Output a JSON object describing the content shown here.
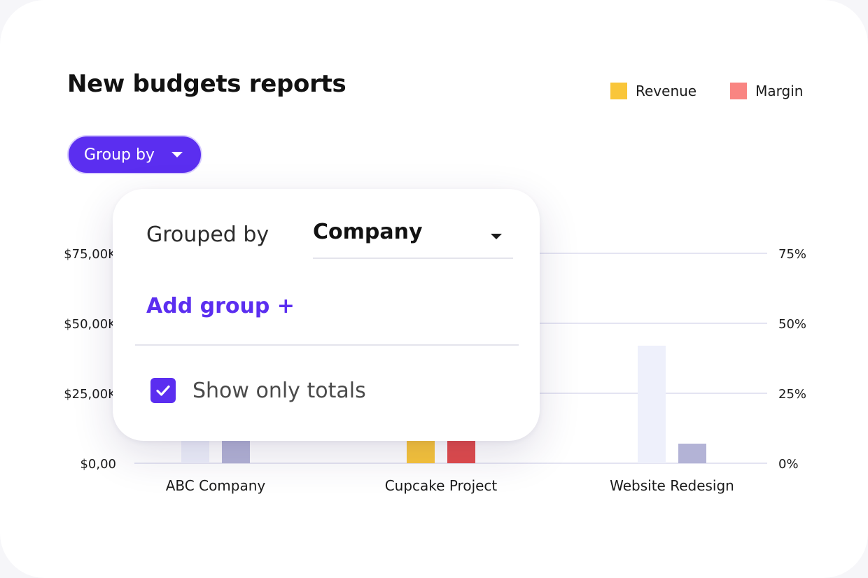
{
  "report": {
    "title": "New budgets reports",
    "group_by_button": "Group by"
  },
  "legend": [
    {
      "label": "Revenue",
      "color": "#F9C63A"
    },
    {
      "label": "Margin",
      "color": "#F98582"
    }
  ],
  "popover": {
    "grouped_by_label": "Grouped by",
    "grouped_by_value": "Company",
    "add_group": "Add group +",
    "show_only_totals": "Show only totals",
    "show_only_totals_checked": true
  },
  "chart_data": {
    "type": "bar",
    "categories": [
      "ABC Company",
      "Cupcake Project",
      "Website Redesign"
    ],
    "y_left_ticks": [
      "$0,00",
      "$25,00K",
      "$50,00K",
      "$75,00K"
    ],
    "y_right_ticks": [
      "0%",
      "25%",
      "50%",
      "75%"
    ],
    "ylim": [
      0,
      75000
    ],
    "y2lim": [
      0,
      75
    ],
    "grid": true,
    "legend_position": "top-right",
    "series": [
      {
        "name": "Revenue",
        "values": [
          8000,
          8000,
          42000
        ],
        "colors": [
          "#EEF0FB",
          "#F9C63A",
          "#EEF0FB"
        ]
      },
      {
        "name": "Margin",
        "values": [
          8000,
          8000,
          7000
        ],
        "colors": [
          "#B3B3D6",
          "#E24C4C",
          "#B3B3D6"
        ]
      }
    ]
  },
  "colors": {
    "accent": "#5B2EF0",
    "grid": "#E4E4F2"
  }
}
